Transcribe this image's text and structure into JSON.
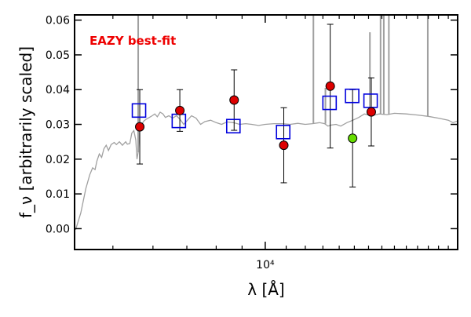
{
  "chart_data": {
    "type": "scatter",
    "annotation": "EAZY best-fit",
    "xlabel": "λ [Å]",
    "ylabel": "f_ν [arbitrarily scaled]",
    "x_scale": "log",
    "xlim": [
      4200,
      24000
    ],
    "ylim": [
      -0.006,
      0.0615
    ],
    "x_ticks": [
      {
        "value": 10000,
        "label": "10⁴"
      }
    ],
    "y_ticks": [
      0.0,
      0.01,
      0.02,
      0.03,
      0.04,
      0.05,
      0.06
    ],
    "y_tick_labels": [
      "0.00",
      "0.01",
      "0.02",
      "0.03",
      "0.04",
      "0.05",
      "0.06"
    ],
    "grid": false,
    "colors": {
      "template": "#a0a0a0",
      "model": "#0000dd",
      "observed": "#dd0000",
      "observed_alt": "#66dd00",
      "annotation": "#ee0000"
    },
    "template_spectrum": [
      [
        4220,
        -0.0003
      ],
      [
        4320,
        0.0045
      ],
      [
        4420,
        0.0115
      ],
      [
        4500,
        0.0155
      ],
      [
        4560,
        0.0175
      ],
      [
        4610,
        0.017
      ],
      [
        4650,
        0.0195
      ],
      [
        4700,
        0.0215
      ],
      [
        4750,
        0.0205
      ],
      [
        4800,
        0.023
      ],
      [
        4850,
        0.024
      ],
      [
        4900,
        0.0225
      ],
      [
        4960,
        0.0242
      ],
      [
        5030,
        0.0248
      ],
      [
        5080,
        0.0242
      ],
      [
        5150,
        0.025
      ],
      [
        5220,
        0.024
      ],
      [
        5300,
        0.025
      ],
      [
        5340,
        0.0243
      ],
      [
        5400,
        0.0245
      ],
      [
        5450,
        0.0275
      ],
      [
        5500,
        0.0282
      ],
      [
        5550,
        0.0255
      ],
      [
        5580,
        0.02
      ],
      [
        5610,
        0.022
      ],
      [
        5650,
        0.0285
      ],
      [
        5700,
        0.03
      ],
      [
        5760,
        0.031
      ],
      [
        5820,
        0.0315
      ],
      [
        5900,
        0.032
      ],
      [
        5980,
        0.0325
      ],
      [
        6050,
        0.033
      ],
      [
        6120,
        0.0322
      ],
      [
        6200,
        0.0335
      ],
      [
        6280,
        0.033
      ],
      [
        6350,
        0.032
      ],
      [
        6450,
        0.0325
      ],
      [
        6560,
        0.0318
      ],
      [
        6680,
        0.0325
      ],
      [
        6800,
        0.0313
      ],
      [
        6900,
        0.03
      ],
      [
        7000,
        0.031
      ],
      [
        7150,
        0.0325
      ],
      [
        7300,
        0.0318
      ],
      [
        7450,
        0.03
      ],
      [
        7600,
        0.0308
      ],
      [
        7800,
        0.0312
      ],
      [
        8000,
        0.0305
      ],
      [
        8200,
        0.03
      ],
      [
        8400,
        0.0307
      ],
      [
        8650,
        0.0305
      ],
      [
        8900,
        0.03
      ],
      [
        9150,
        0.0302
      ],
      [
        9400,
        0.03
      ],
      [
        9700,
        0.0297
      ],
      [
        10000,
        0.03
      ],
      [
        10400,
        0.0302
      ],
      [
        10800,
        0.0302
      ],
      [
        11200,
        0.03
      ],
      [
        11600,
        0.0303
      ],
      [
        12000,
        0.03
      ],
      [
        12400,
        0.0302
      ],
      [
        12800,
        0.0305
      ],
      [
        13100,
        0.0302
      ],
      [
        13300,
        0.0295
      ],
      [
        13500,
        0.0298
      ],
      [
        13800,
        0.03
      ],
      [
        14100,
        0.0295
      ],
      [
        14500,
        0.0305
      ],
      [
        14900,
        0.0312
      ],
      [
        15300,
        0.032
      ],
      [
        15700,
        0.033
      ],
      [
        16200,
        0.0325
      ],
      [
        16800,
        0.033
      ],
      [
        17400,
        0.0328
      ],
      [
        18000,
        0.0332
      ],
      [
        19000,
        0.033
      ],
      [
        20000,
        0.0327
      ],
      [
        21000,
        0.0323
      ],
      [
        22000,
        0.0318
      ],
      [
        23000,
        0.0312
      ],
      [
        23500,
        0.0305
      ],
      [
        24000,
        0.031
      ]
    ],
    "emission_lines": [
      {
        "x": 5610,
        "y": 0.0615
      },
      {
        "x": 12450,
        "y": 0.0615
      },
      {
        "x": 13150,
        "y": 0.0405
      },
      {
        "x": 16100,
        "y": 0.0565
      },
      {
        "x": 16900,
        "y": 0.0615
      },
      {
        "x": 17150,
        "y": 0.0615
      },
      {
        "x": 17550,
        "y": 0.0615
      },
      {
        "x": 20950,
        "y": 0.0615
      }
    ],
    "series": [
      {
        "marker": "open-square",
        "x": [
          5630,
          6750,
          8650,
          10850,
          13400,
          14850,
          16150
        ],
        "y": [
          0.034,
          0.031,
          0.0295,
          0.0278,
          0.0362,
          0.0382,
          0.0368
        ]
      },
      {
        "marker": "filled-circle",
        "x": [
          5650,
          6780,
          8680,
          10880,
          13440,
          14880,
          16200
        ],
        "y": [
          0.0293,
          0.034,
          0.037,
          0.024,
          0.041,
          0.026,
          0.0336
        ],
        "yerr": [
          0.0107,
          0.006,
          0.0087,
          0.0108,
          0.0178,
          0.014,
          0.0098
        ]
      }
    ]
  }
}
